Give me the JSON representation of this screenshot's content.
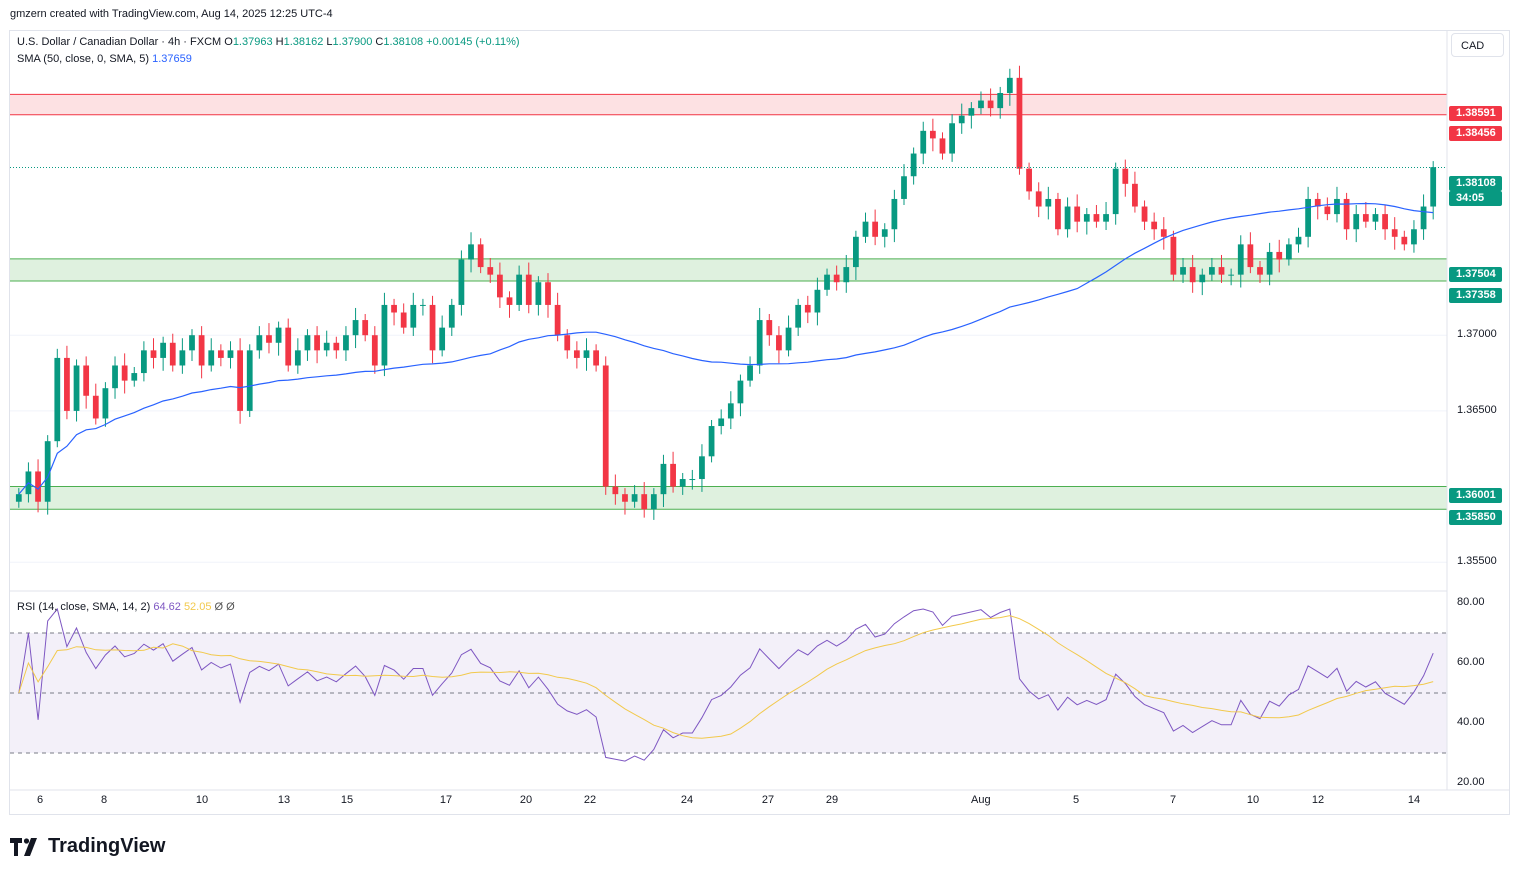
{
  "header": {
    "attribution": "gmzern created with TradingView.com, Aug 14, 2025 12:25 UTC-4"
  },
  "legend": {
    "symbol": "U.S. Dollar / Canadian Dollar · 4h · FXCM",
    "o_label": "O",
    "o": "1.37963",
    "h_label": "H",
    "h": "1.38162",
    "l_label": "L",
    "l": "1.37900",
    "c_label": "C",
    "c": "1.38108",
    "change": "+0.00145 (+0.11%)",
    "sma_label": "SMA (50, close, 0, SMA, 5)",
    "sma_value": "1.37659",
    "rsi_label": "RSI (14, close, SMA, 14, 2)",
    "rsi_value": "64.62",
    "rsi_ma_value": "52.05",
    "rsi_extra1": "Ø",
    "rsi_extra2": "Ø"
  },
  "currency_button": "CAD",
  "price_axis": {
    "labels": [
      "1.37000",
      "1.36500",
      "1.35500"
    ],
    "tags": [
      {
        "text": "1.38591",
        "color": "#f23645"
      },
      {
        "text": "1.38456",
        "color": "#f23645"
      },
      {
        "text": "1.38108",
        "color": "#089981"
      },
      {
        "text": "34:05",
        "color": "#089981"
      },
      {
        "text": "1.37504",
        "color": "#089981"
      },
      {
        "text": "1.37358",
        "color": "#089981"
      },
      {
        "text": "1.36001",
        "color": "#089981"
      },
      {
        "text": "1.35850",
        "color": "#089981"
      }
    ]
  },
  "rsi_axis": {
    "labels": [
      "80.00",
      "60.00",
      "40.00",
      "20.00"
    ]
  },
  "time_axis": {
    "labels": [
      "6",
      "8",
      "10",
      "13",
      "15",
      "17",
      "20",
      "22",
      "24",
      "27",
      "29",
      "Aug",
      "5",
      "7",
      "10",
      "12",
      "14"
    ]
  },
  "logo": {
    "text": "TradingView"
  },
  "colors": {
    "up": "#089981",
    "down": "#f23645",
    "sma": "#2962ff",
    "rsi": "#7e57c2",
    "rsi_ma": "#f2c94c"
  },
  "chart_data": {
    "type": "candlestick",
    "price_range": [
      1.3535,
      1.3895
    ],
    "zones": [
      {
        "kind": "resistance",
        "from": 1.38456,
        "to": 1.38591
      },
      {
        "kind": "support",
        "from": 1.37358,
        "to": 1.37504
      },
      {
        "kind": "support",
        "from": 1.3585,
        "to": 1.36001
      }
    ],
    "current_price": 1.38108,
    "closes": [
      1.3595,
      1.361,
      1.359,
      1.363,
      1.3685,
      1.365,
      1.368,
      1.366,
      1.3645,
      1.3665,
      1.368,
      1.367,
      1.3675,
      1.369,
      1.3685,
      1.3695,
      1.368,
      1.369,
      1.37,
      1.368,
      1.369,
      1.3685,
      1.369,
      1.365,
      1.369,
      1.37,
      1.3695,
      1.3705,
      1.368,
      1.369,
      1.37,
      1.369,
      1.3695,
      1.369,
      1.37,
      1.371,
      1.37,
      1.368,
      1.372,
      1.3715,
      1.3705,
      1.372,
      1.372,
      1.369,
      1.3705,
      1.372,
      1.375,
      1.376,
      1.3745,
      1.374,
      1.3725,
      1.372,
      1.374,
      1.372,
      1.3735,
      1.372,
      1.37,
      1.369,
      1.3685,
      1.369,
      1.368,
      1.36,
      1.3595,
      1.359,
      1.3595,
      1.3585,
      1.3595,
      1.3615,
      1.36,
      1.3605,
      1.3605,
      1.362,
      1.364,
      1.3645,
      1.3655,
      1.367,
      1.368,
      1.371,
      1.37,
      1.369,
      1.3705,
      1.372,
      1.3715,
      1.373,
      1.374,
      1.3735,
      1.3745,
      1.3765,
      1.3775,
      1.3765,
      1.377,
      1.379,
      1.3805,
      1.382,
      1.3835,
      1.383,
      1.382,
      1.384,
      1.3845,
      1.385,
      1.3855,
      1.385,
      1.386,
      1.387,
      1.381,
      1.3795,
      1.3785,
      1.379,
      1.377,
      1.3785,
      1.3775,
      1.378,
      1.3775,
      1.378,
      1.381,
      1.38,
      1.3785,
      1.3775,
      1.377,
      1.3765,
      1.374,
      1.3745,
      1.3735,
      1.374,
      1.3745,
      1.374,
      1.374,
      1.376,
      1.3745,
      1.374,
      1.3755,
      1.375,
      1.376,
      1.3765,
      1.379,
      1.3785,
      1.378,
      1.379,
      1.377,
      1.378,
      1.3775,
      1.378,
      1.377,
      1.3765,
      1.376,
      1.377,
      1.3785,
      1.3811
    ],
    "rsi_range": [
      20,
      80
    ],
    "rsi_levels": [
      70,
      50,
      30
    ]
  }
}
